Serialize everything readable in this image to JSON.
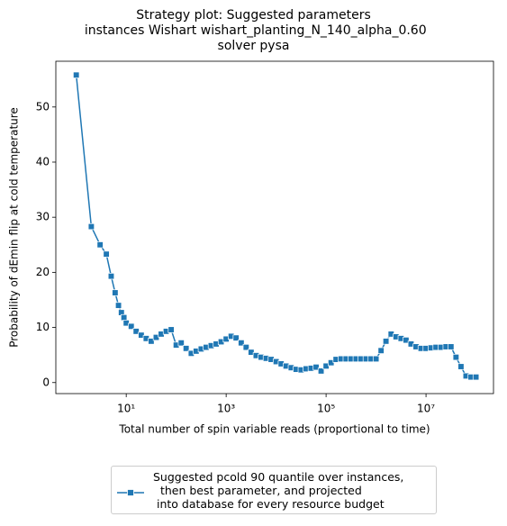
{
  "chart_data": {
    "type": "line",
    "title": "Strategy plot: Suggested parameters\n instances Wishart wishart_planting_N_140_alpha_0.60\nsolver pysa",
    "xlabel": "Total number of spin variable reads (proportional to time)",
    "ylabel": "Probability of dEmin flip at cold temperature",
    "log_x": true,
    "xlim": [
      0.39,
      224000000
    ],
    "ylim": [
      -2,
      58.3
    ],
    "xticks": [
      {
        "value": 10,
        "label": "10¹"
      },
      {
        "value": 1000,
        "label": "10³"
      },
      {
        "value": 100000,
        "label": "10⁵"
      },
      {
        "value": 10000000,
        "label": "10⁷"
      }
    ],
    "yticks": [
      0,
      10,
      20,
      30,
      40,
      50
    ],
    "legend": "lower center outside",
    "x": [
      1,
      2,
      3,
      4,
      5,
      6,
      7,
      8,
      9,
      10,
      12.6,
      15.8,
      20,
      25.1,
      31.6,
      39.8,
      50.1,
      63.1,
      79.4,
      100,
      126,
      158,
      200,
      251,
      316,
      398,
      501,
      631,
      794,
      1000,
      1260,
      1580,
      2000,
      2510,
      3160,
      3980,
      5010,
      6310,
      7940,
      10000,
      12600,
      15800,
      20000,
      25100,
      31600,
      39800,
      50100,
      63100,
      79400,
      100000,
      126000,
      158000,
      200000,
      251000,
      316000,
      398000,
      501000,
      631000,
      794000,
      1000000,
      1260000,
      1580000,
      2000000,
      2510000,
      3160000,
      3980000,
      5010000,
      6310000,
      7940000,
      10000000,
      12600000,
      15800000,
      20000000,
      25100000,
      31600000,
      39800000,
      50100000,
      63100000,
      79400000,
      100000000
    ],
    "series": [
      {
        "name": "Suggested pcold 90 quantile over instances,\n  then best parameter, and projected\n into database for every resource budget",
        "color": "#1f77b4",
        "values": [
          55.8,
          28.3,
          25,
          23.3,
          19.3,
          16.3,
          14,
          12.7,
          11.8,
          10.8,
          10.2,
          9.3,
          8.6,
          8.0,
          7.5,
          8.2,
          8.8,
          9.3,
          9.6,
          6.8,
          7.2,
          6.2,
          5.3,
          5.7,
          6.1,
          6.4,
          6.7,
          7.0,
          7.4,
          7.9,
          8.4,
          8.1,
          7.2,
          6.4,
          5.5,
          4.9,
          4.6,
          4.4,
          4.2,
          3.8,
          3.4,
          3.0,
          2.7,
          2.4,
          2.3,
          2.5,
          2.6,
          2.8,
          2.1,
          3.0,
          3.6,
          4.2,
          4.3,
          4.3,
          4.3,
          4.3,
          4.3,
          4.3,
          4.3,
          4.3,
          5.8,
          7.5,
          8.8,
          8.3,
          8.0,
          7.7,
          7.0,
          6.5,
          6.2,
          6.2,
          6.3,
          6.4,
          6.4,
          6.5,
          6.5,
          4.6,
          2.9,
          1.2,
          1.0,
          1.0
        ]
      }
    ]
  }
}
